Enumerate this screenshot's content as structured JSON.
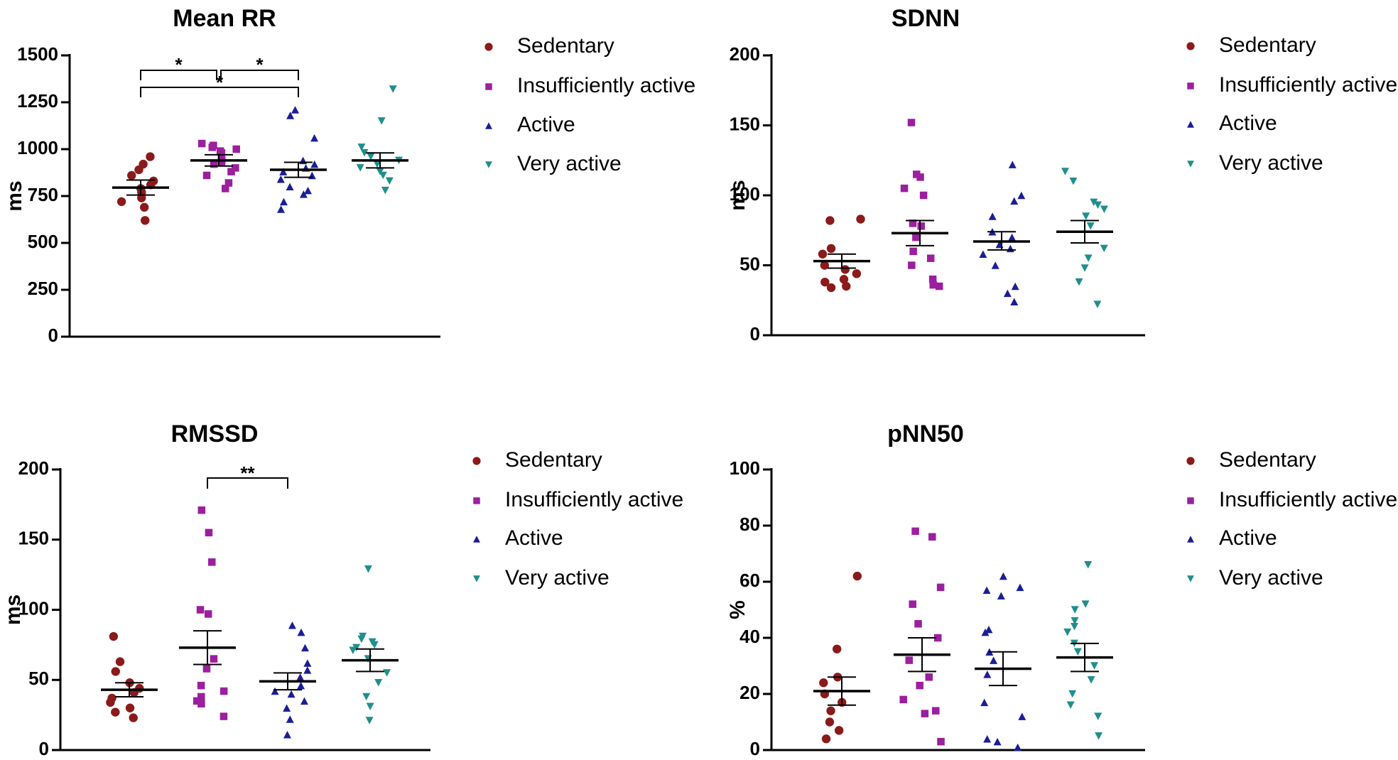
{
  "chart_data": [
    {
      "type": "scatter",
      "title": "Mean RR",
      "ylabel": "ms",
      "ylim": [
        0,
        1500
      ],
      "yticks": [
        0,
        250,
        500,
        750,
        1000,
        1250,
        1500
      ],
      "tick_labels": [
        "0",
        "250",
        "500",
        "750",
        "1000",
        "1250",
        "1500"
      ],
      "categories": [
        "Sedentary",
        "Insufficiently active",
        "Active",
        "Very active"
      ],
      "series": [
        {
          "name": "Sedentary",
          "values": [
            960,
            920,
            890,
            860,
            830,
            810,
            790,
            770,
            740,
            720,
            690,
            620
          ],
          "mean": 795,
          "sem_low": 755,
          "sem_high": 835
        },
        {
          "name": "Insufficiently active",
          "values": [
            1030,
            1020,
            1010,
            1000,
            990,
            980,
            960,
            940,
            930,
            920,
            900,
            880,
            860,
            820,
            790
          ],
          "mean": 940,
          "sem_low": 910,
          "sem_high": 970
        },
        {
          "name": "Active",
          "values": [
            1210,
            1180,
            1060,
            940,
            920,
            900,
            880,
            860,
            840,
            800,
            780,
            760,
            720,
            680
          ],
          "mean": 890,
          "sem_low": 850,
          "sem_high": 930
        },
        {
          "name": "Very active",
          "values": [
            1320,
            1150,
            1010,
            980,
            960,
            940,
            920,
            900,
            880,
            860,
            830,
            780
          ],
          "mean": 940,
          "sem_low": 900,
          "sem_high": 980
        }
      ],
      "significance": [
        {
          "from": 0,
          "to": 1,
          "label": "*"
        },
        {
          "from": 1,
          "to": 2,
          "label": "*"
        },
        {
          "from": 0,
          "to": 2,
          "label": "*"
        }
      ],
      "legend": "right"
    },
    {
      "type": "scatter",
      "title": "SDNN",
      "ylabel": "ms",
      "ylim": [
        0,
        200
      ],
      "yticks": [
        0,
        50,
        100,
        150,
        200
      ],
      "tick_labels": [
        "0",
        "50",
        "100",
        "150",
        "200"
      ],
      "categories": [
        "Sedentary",
        "Insufficiently active",
        "Active",
        "Very active"
      ],
      "series": [
        {
          "name": "Sedentary",
          "values": [
            83,
            82,
            62,
            58,
            50,
            47,
            44,
            40,
            38,
            35,
            34
          ],
          "mean": 53,
          "sem_low": 48,
          "sem_high": 58
        },
        {
          "name": "Insufficiently active",
          "values": [
            152,
            115,
            113,
            105,
            100,
            80,
            78,
            70,
            60,
            55,
            50,
            40,
            36,
            35
          ],
          "mean": 73,
          "sem_low": 64,
          "sem_high": 82
        },
        {
          "name": "Active",
          "values": [
            122,
            100,
            96,
            85,
            74,
            70,
            65,
            62,
            58,
            50,
            35,
            30,
            24
          ],
          "mean": 67,
          "sem_low": 61,
          "sem_high": 74
        },
        {
          "name": "Very active",
          "values": [
            117,
            110,
            95,
            93,
            90,
            85,
            78,
            62,
            55,
            48,
            38,
            22
          ],
          "mean": 74,
          "sem_low": 66,
          "sem_high": 82
        }
      ],
      "significance": [],
      "legend": "right"
    },
    {
      "type": "scatter",
      "title": "RMSSD",
      "ylabel": "ms",
      "ylim": [
        0,
        200
      ],
      "yticks": [
        0,
        50,
        100,
        150,
        200
      ],
      "tick_labels": [
        "0",
        "50",
        "100",
        "150",
        "200"
      ],
      "categories": [
        "Sedentary",
        "Insufficiently active",
        "Active",
        "Very active"
      ],
      "series": [
        {
          "name": "Sedentary",
          "values": [
            81,
            63,
            56,
            48,
            44,
            41,
            37,
            34,
            30,
            27,
            23
          ],
          "mean": 43,
          "sem_low": 38,
          "sem_high": 48
        },
        {
          "name": "Insufficiently active",
          "values": [
            171,
            155,
            134,
            100,
            97,
            65,
            58,
            46,
            42,
            38,
            35,
            33,
            24
          ],
          "mean": 73,
          "sem_low": 61,
          "sem_high": 85
        },
        {
          "name": "Active",
          "values": [
            89,
            84,
            73,
            62,
            57,
            52,
            46,
            42,
            40,
            35,
            30,
            22,
            11
          ],
          "mean": 49,
          "sem_low": 43,
          "sem_high": 55
        },
        {
          "name": "Very active",
          "values": [
            129,
            81,
            79,
            77,
            75,
            73,
            71,
            65,
            55,
            48,
            38,
            31,
            21
          ],
          "mean": 64,
          "sem_low": 56,
          "sem_high": 72
        }
      ],
      "significance": [
        {
          "from": 1,
          "to": 2,
          "label": "**"
        }
      ],
      "legend": "right"
    },
    {
      "type": "scatter",
      "title": "pNN50",
      "ylabel": "%",
      "ylim": [
        0,
        100
      ],
      "yticks": [
        0,
        20,
        40,
        60,
        80,
        100
      ],
      "tick_labels": [
        "0",
        "20",
        "40",
        "60",
        "80",
        "100"
      ],
      "categories": [
        "Sedentary",
        "Insufficiently active",
        "Active",
        "Very active"
      ],
      "series": [
        {
          "name": "Sedentary",
          "values": [
            62,
            36,
            26,
            24,
            20,
            17,
            14,
            10,
            7,
            4
          ],
          "mean": 21,
          "sem_low": 16,
          "sem_high": 26
        },
        {
          "name": "Insufficiently active",
          "values": [
            78,
            76,
            58,
            52,
            45,
            40,
            32,
            26,
            23,
            18,
            14,
            13,
            3
          ],
          "mean": 34,
          "sem_low": 28,
          "sem_high": 40
        },
        {
          "name": "Active",
          "values": [
            62,
            58,
            57,
            55,
            43,
            42,
            35,
            32,
            27,
            17,
            12,
            4,
            3,
            1
          ],
          "mean": 29,
          "sem_low": 23,
          "sem_high": 35
        },
        {
          "name": "Very active",
          "values": [
            66,
            52,
            50,
            46,
            44,
            42,
            38,
            35,
            30,
            25,
            20,
            16,
            12,
            5
          ],
          "mean": 33,
          "sem_low": 28,
          "sem_high": 38
        }
      ],
      "significance": [],
      "legend": "right"
    }
  ],
  "legend_colors": [
    "#8b1a1a",
    "#9b1f9e",
    "#1a1e96",
    "#1f8f8c"
  ],
  "legend_markers": [
    "circle",
    "square",
    "triangle-up",
    "triangle-down"
  ]
}
